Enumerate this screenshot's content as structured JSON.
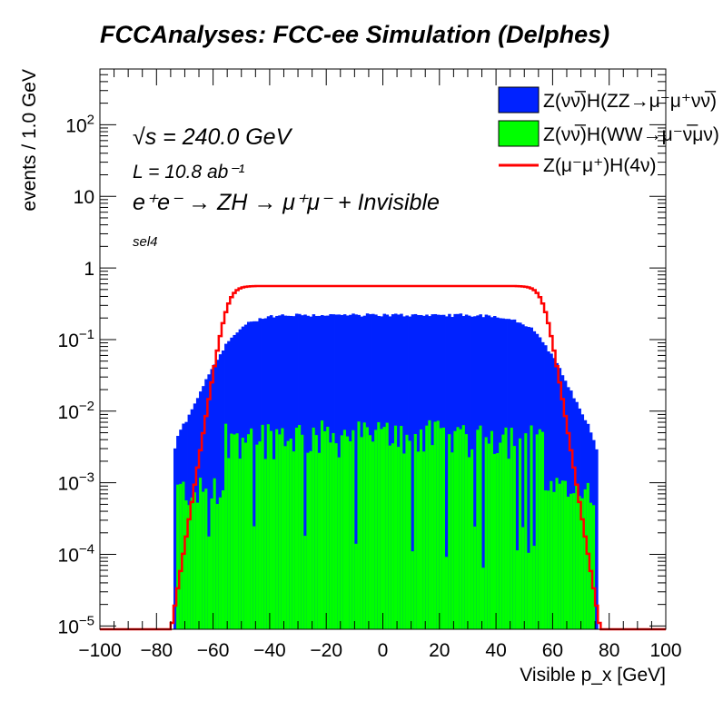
{
  "chart_data": {
    "type": "histogram",
    "title": "FCCAnalyses: FCC-ee Simulation (Delphes)",
    "xlabel": "Visible p_x [GeV]",
    "ylabel": "events / 1.0 GeV",
    "xlim": [
      -100,
      100
    ],
    "ylim": [
      9e-06,
      600
    ],
    "yscale": "log",
    "bin_width": 1.0,
    "grid": false,
    "legend_position": "top-right",
    "x_ticks": [
      "−100",
      "−80",
      "−60",
      "−40",
      "−20",
      "0",
      "20",
      "40",
      "60",
      "80",
      "100"
    ],
    "y_ticks": [
      {
        "base": "10",
        "exp": "−5"
      },
      {
        "base": "10",
        "exp": "−4"
      },
      {
        "base": "10",
        "exp": "−3"
      },
      {
        "base": "10",
        "exp": "−2"
      },
      {
        "base": "10",
        "exp": "−1"
      },
      {
        "base": "1",
        "exp": ""
      },
      {
        "base": "10",
        "exp": ""
      },
      {
        "base": "10",
        "exp": "2"
      }
    ],
    "annotations": {
      "sqrt_s": "√s = 240.0 GeV",
      "lumi": "L = 10.8 ab⁻¹",
      "process": "e⁺e⁻ → ZH → μ⁺μ⁻ + Invisible",
      "selection": "sel4"
    },
    "series": [
      {
        "name": "Z(νν̅)H(ZZ→μ⁻μ⁺νν̅)",
        "style": "filled",
        "color": "#0022ff",
        "shape": {
          "plateau": 0.22,
          "edge_lo": -53,
          "edge_hi": 55,
          "width": 4.8,
          "tail_lo": -74,
          "tail_hi": 76
        }
      },
      {
        "name": "Z(νν̅)H(WW→μ⁻ν̅μν)",
        "style": "filled",
        "color": "#00ff00",
        "shape": {
          "level": 0.006,
          "edge_lo": -56,
          "edge_hi": 57,
          "tail_lo": -73,
          "tail_hi": 75
        }
      },
      {
        "name": "Z(μ⁻μ⁺)H(4ν)",
        "style": "line",
        "color": "#ff0000",
        "shape": {
          "plateau": 0.56,
          "edge_lo": -55,
          "edge_hi": 57,
          "width": 1.8
        }
      }
    ]
  }
}
